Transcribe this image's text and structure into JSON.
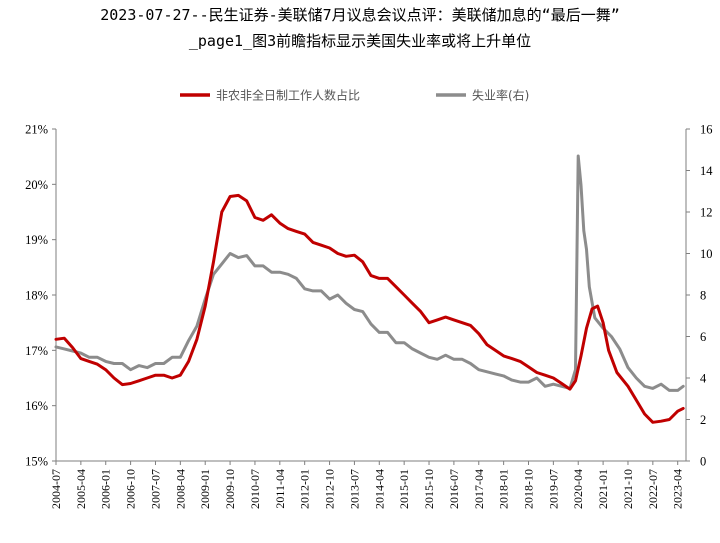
{
  "title_line1": "2023-07-27--民生证券-美联储7月议息会议点评：美联储加息的“最后一舞”",
  "title_line2": "_page1_图3前瞻指标显示美国失业率或将上升单位",
  "colors": {
    "series1": "#c00000",
    "series2": "#8c8c8c",
    "axis": "#7f7f7f"
  },
  "chart_data": {
    "type": "line",
    "legend_position": "top",
    "grid": false,
    "x_ticks": [
      "2004-07",
      "2005-04",
      "2006-01",
      "2006-10",
      "2007-07",
      "2008-04",
      "2009-01",
      "2009-10",
      "2010-07",
      "2011-04",
      "2012-01",
      "2012-10",
      "2013-07",
      "2014-04",
      "2015-01",
      "2015-10",
      "2016-07",
      "2017-04",
      "2018-01",
      "2018-10",
      "2019-07",
      "2020-04",
      "2021-01",
      "2021-10",
      "2022-07",
      "2023-04"
    ],
    "y_left": {
      "min": 15,
      "max": 21,
      "step": 1,
      "ticks": [
        "15%",
        "16%",
        "17%",
        "18%",
        "19%",
        "20%",
        "21%"
      ]
    },
    "y_right": {
      "min": 0,
      "max": 16,
      "step": 2,
      "ticks": [
        "0",
        "2",
        "4",
        "6",
        "8",
        "10",
        "12",
        "14",
        "16"
      ]
    },
    "series": [
      {
        "name": "非农非全日制工作人数占比",
        "axis": "left",
        "points": [
          [
            "2004-07",
            17.2
          ],
          [
            "2004-10",
            17.22
          ],
          [
            "2005-01",
            17.05
          ],
          [
            "2005-04",
            16.85
          ],
          [
            "2005-07",
            16.8
          ],
          [
            "2005-10",
            16.75
          ],
          [
            "2006-01",
            16.65
          ],
          [
            "2006-04",
            16.5
          ],
          [
            "2006-07",
            16.38
          ],
          [
            "2006-10",
            16.4
          ],
          [
            "2007-01",
            16.45
          ],
          [
            "2007-04",
            16.5
          ],
          [
            "2007-07",
            16.55
          ],
          [
            "2007-10",
            16.55
          ],
          [
            "2008-01",
            16.5
          ],
          [
            "2008-04",
            16.55
          ],
          [
            "2008-07",
            16.8
          ],
          [
            "2008-10",
            17.2
          ],
          [
            "2009-01",
            17.8
          ],
          [
            "2009-04",
            18.6
          ],
          [
            "2009-07",
            19.5
          ],
          [
            "2009-10",
            19.78
          ],
          [
            "2010-01",
            19.8
          ],
          [
            "2010-04",
            19.7
          ],
          [
            "2010-07",
            19.4
          ],
          [
            "2010-10",
            19.35
          ],
          [
            "2011-01",
            19.45
          ],
          [
            "2011-04",
            19.3
          ],
          [
            "2011-07",
            19.2
          ],
          [
            "2011-10",
            19.15
          ],
          [
            "2012-01",
            19.1
          ],
          [
            "2012-04",
            18.95
          ],
          [
            "2012-07",
            18.9
          ],
          [
            "2012-10",
            18.85
          ],
          [
            "2013-01",
            18.75
          ],
          [
            "2013-04",
            18.7
          ],
          [
            "2013-07",
            18.72
          ],
          [
            "2013-10",
            18.6
          ],
          [
            "2014-01",
            18.35
          ],
          [
            "2014-04",
            18.3
          ],
          [
            "2014-07",
            18.3
          ],
          [
            "2014-10",
            18.15
          ],
          [
            "2015-01",
            18.0
          ],
          [
            "2015-04",
            17.85
          ],
          [
            "2015-07",
            17.7
          ],
          [
            "2015-10",
            17.5
          ],
          [
            "2016-01",
            17.55
          ],
          [
            "2016-04",
            17.6
          ],
          [
            "2016-07",
            17.55
          ],
          [
            "2016-10",
            17.5
          ],
          [
            "2017-01",
            17.45
          ],
          [
            "2017-04",
            17.3
          ],
          [
            "2017-07",
            17.1
          ],
          [
            "2017-10",
            17.0
          ],
          [
            "2018-01",
            16.9
          ],
          [
            "2018-04",
            16.85
          ],
          [
            "2018-07",
            16.8
          ],
          [
            "2018-10",
            16.7
          ],
          [
            "2019-01",
            16.6
          ],
          [
            "2019-04",
            16.55
          ],
          [
            "2019-07",
            16.5
          ],
          [
            "2019-10",
            16.4
          ],
          [
            "2020-01",
            16.3
          ],
          [
            "2020-03",
            16.45
          ],
          [
            "2020-05",
            16.9
          ],
          [
            "2020-07",
            17.4
          ],
          [
            "2020-09",
            17.75
          ],
          [
            "2020-11",
            17.8
          ],
          [
            "2021-01",
            17.5
          ],
          [
            "2021-03",
            17.0
          ],
          [
            "2021-06",
            16.6
          ],
          [
            "2021-10",
            16.35
          ],
          [
            "2022-01",
            16.1
          ],
          [
            "2022-04",
            15.85
          ],
          [
            "2022-07",
            15.7
          ],
          [
            "2022-10",
            15.72
          ],
          [
            "2023-01",
            15.75
          ],
          [
            "2023-04",
            15.9
          ],
          [
            "2023-06",
            15.95
          ]
        ]
      },
      {
        "name": "失业率(右)",
        "axis": "right",
        "points": [
          [
            "2004-07",
            5.5
          ],
          [
            "2004-10",
            5.4
          ],
          [
            "2005-01",
            5.3
          ],
          [
            "2005-04",
            5.2
          ],
          [
            "2005-07",
            5.0
          ],
          [
            "2005-10",
            5.0
          ],
          [
            "2006-01",
            4.8
          ],
          [
            "2006-04",
            4.7
          ],
          [
            "2006-07",
            4.7
          ],
          [
            "2006-10",
            4.4
          ],
          [
            "2007-01",
            4.6
          ],
          [
            "2007-04",
            4.5
          ],
          [
            "2007-07",
            4.7
          ],
          [
            "2007-10",
            4.7
          ],
          [
            "2008-01",
            5.0
          ],
          [
            "2008-04",
            5.0
          ],
          [
            "2008-07",
            5.8
          ],
          [
            "2008-10",
            6.5
          ],
          [
            "2009-01",
            7.8
          ],
          [
            "2009-04",
            9.0
          ],
          [
            "2009-07",
            9.5
          ],
          [
            "2009-10",
            10.0
          ],
          [
            "2010-01",
            9.8
          ],
          [
            "2010-04",
            9.9
          ],
          [
            "2010-07",
            9.4
          ],
          [
            "2010-10",
            9.4
          ],
          [
            "2011-01",
            9.1
          ],
          [
            "2011-04",
            9.1
          ],
          [
            "2011-07",
            9.0
          ],
          [
            "2011-10",
            8.8
          ],
          [
            "2012-01",
            8.3
          ],
          [
            "2012-04",
            8.2
          ],
          [
            "2012-07",
            8.2
          ],
          [
            "2012-10",
            7.8
          ],
          [
            "2013-01",
            8.0
          ],
          [
            "2013-04",
            7.6
          ],
          [
            "2013-07",
            7.3
          ],
          [
            "2013-10",
            7.2
          ],
          [
            "2014-01",
            6.6
          ],
          [
            "2014-04",
            6.2
          ],
          [
            "2014-07",
            6.2
          ],
          [
            "2014-10",
            5.7
          ],
          [
            "2015-01",
            5.7
          ],
          [
            "2015-04",
            5.4
          ],
          [
            "2015-07",
            5.2
          ],
          [
            "2015-10",
            5.0
          ],
          [
            "2016-01",
            4.9
          ],
          [
            "2016-04",
            5.1
          ],
          [
            "2016-07",
            4.9
          ],
          [
            "2016-10",
            4.9
          ],
          [
            "2017-01",
            4.7
          ],
          [
            "2017-04",
            4.4
          ],
          [
            "2017-07",
            4.3
          ],
          [
            "2017-10",
            4.2
          ],
          [
            "2018-01",
            4.1
          ],
          [
            "2018-04",
            3.9
          ],
          [
            "2018-07",
            3.8
          ],
          [
            "2018-10",
            3.8
          ],
          [
            "2019-01",
            4.0
          ],
          [
            "2019-04",
            3.6
          ],
          [
            "2019-07",
            3.7
          ],
          [
            "2019-10",
            3.6
          ],
          [
            "2020-01",
            3.5
          ],
          [
            "2020-03",
            4.4
          ],
          [
            "2020-04",
            14.7
          ],
          [
            "2020-05",
            13.3
          ],
          [
            "2020-06",
            11.1
          ],
          [
            "2020-07",
            10.2
          ],
          [
            "2020-08",
            8.4
          ],
          [
            "2020-10",
            6.9
          ],
          [
            "2021-01",
            6.4
          ],
          [
            "2021-04",
            6.0
          ],
          [
            "2021-07",
            5.4
          ],
          [
            "2021-10",
            4.5
          ],
          [
            "2022-01",
            4.0
          ],
          [
            "2022-04",
            3.6
          ],
          [
            "2022-07",
            3.5
          ],
          [
            "2022-10",
            3.7
          ],
          [
            "2023-01",
            3.4
          ],
          [
            "2023-04",
            3.4
          ],
          [
            "2023-06",
            3.6
          ]
        ]
      }
    ]
  }
}
